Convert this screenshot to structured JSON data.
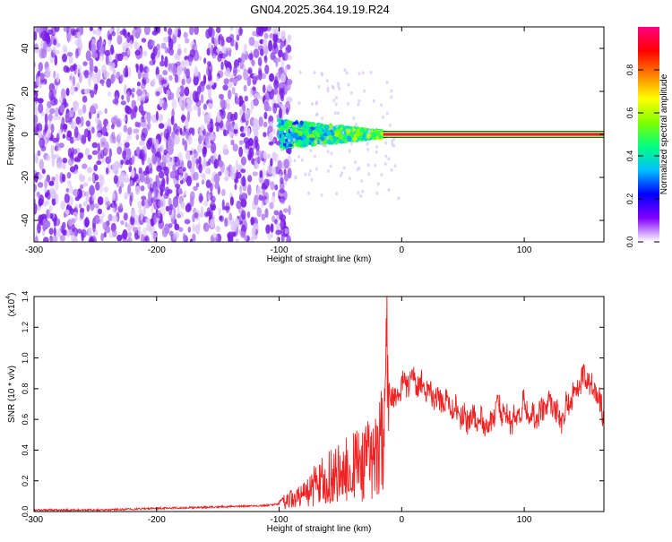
{
  "title": "GN04.2025.364.19.19.R24",
  "chart_data": [
    {
      "type": "heatmap",
      "xlabel": "Height of straight line (km)",
      "ylabel": "Frequency (Hz)",
      "xlim": [
        -300,
        165
      ],
      "ylim": [
        -50,
        50
      ],
      "xticks": [
        "-300",
        "-200",
        "-100",
        "0",
        "100"
      ],
      "xtick_values": [
        -300,
        -200,
        -100,
        0,
        100
      ],
      "yticks": [
        "-40",
        "-20",
        "0",
        "20",
        "40"
      ],
      "ytick_values": [
        -40,
        -20,
        0,
        20,
        40
      ],
      "grid": false,
      "colorbar": {
        "label": "Normalized spectral amplitude",
        "ticks": [
          "0.0",
          "0.2",
          "0.4",
          "0.6",
          "0.8"
        ],
        "tick_values": [
          0.0,
          0.2,
          0.4,
          0.6,
          0.8
        ],
        "colors": [
          "#ffffff",
          "#8000ff",
          "#0000ff",
          "#00c0ff",
          "#00ff80",
          "#80ff00",
          "#ffff00",
          "#ff8000",
          "#ff0000",
          "#ff0080"
        ]
      },
      "regions": [
        {
          "x": [
            -300,
            -100
          ],
          "y": [
            -50,
            50
          ],
          "amplitude": 0.15,
          "description_level": "noise"
        },
        {
          "x": [
            -100,
            -15
          ],
          "y": [
            -6,
            7
          ],
          "amplitude": 0.35
        },
        {
          "x": [
            -15,
            165
          ],
          "y": [
            -1,
            1
          ],
          "amplitude": 0.95
        }
      ]
    },
    {
      "type": "line",
      "xlabel": "Height of straight line (km)",
      "ylabel": "SNR (10 * v/v)",
      "yscale_label": "(x10",
      "yscale_exp": "4",
      "yscale_close": ")",
      "xlim": [
        -300,
        165
      ],
      "ylim": [
        0.0,
        1.4
      ],
      "xticks": [
        "-300",
        "-200",
        "-100",
        "0",
        "100"
      ],
      "xtick_values": [
        -300,
        -200,
        -100,
        0,
        100
      ],
      "yticks": [
        "0.0",
        "0.2",
        "0.4",
        "0.6",
        "0.8",
        "1.0",
        "1.2",
        "1.4"
      ],
      "ytick_values": [
        0.0,
        0.2,
        0.4,
        0.6,
        0.8,
        1.0,
        1.2,
        1.4
      ],
      "color": "#ee2222",
      "series": [
        {
          "x": [
            -300,
            -250,
            -200,
            -150,
            -110,
            -100,
            -90,
            -80,
            -70,
            -60,
            -50,
            -40,
            -30,
            -20,
            -15,
            -12,
            -10,
            -5,
            0,
            10,
            20,
            30,
            40,
            50,
            60,
            70,
            80,
            90,
            100,
            110,
            120,
            130,
            140,
            150,
            160,
            165
          ],
          "y": [
            0.01,
            0.01,
            0.02,
            0.03,
            0.04,
            0.05,
            0.08,
            0.12,
            0.18,
            0.22,
            0.26,
            0.3,
            0.32,
            0.35,
            0.5,
            1.4,
            0.8,
            0.7,
            0.82,
            0.85,
            0.8,
            0.72,
            0.7,
            0.6,
            0.62,
            0.55,
            0.68,
            0.58,
            0.7,
            0.6,
            0.72,
            0.6,
            0.78,
            0.88,
            0.75,
            0.6
          ]
        }
      ]
    }
  ]
}
